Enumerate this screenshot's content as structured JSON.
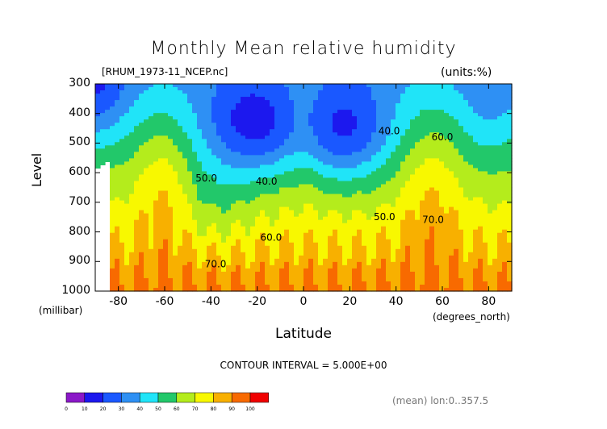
{
  "header": {
    "title": "Monthly Mean relative humidity",
    "source_file": "[RHUM_1973-11_NCEP.nc]",
    "units": "(units:%)",
    "contour_interval": "CONTOUR INTERVAL = 5.000E+00",
    "mean_note": "(mean) lon:0..357.5"
  },
  "chart_data": {
    "type": "heatmap",
    "title": "Monthly Mean relative humidity",
    "xlabel": "Latitude",
    "x_unit": "(degrees_north)",
    "ylabel": "Level",
    "y_unit": "(millibar)",
    "xlim": [
      -90,
      90
    ],
    "ylim": [
      1000,
      300
    ],
    "x_ticks": [
      -80,
      -60,
      -40,
      -20,
      0,
      20,
      40,
      60,
      80
    ],
    "x_tick_labels": [
      "-80",
      "-60",
      "-40",
      "-20",
      "0",
      "20",
      "40",
      "60",
      "80"
    ],
    "y_ticks": [
      300,
      400,
      500,
      600,
      700,
      800,
      900,
      1000
    ],
    "y_tick_labels": [
      "300",
      "400",
      "500",
      "600",
      "700",
      "800",
      "900",
      "1000"
    ],
    "contour_interval": 5,
    "contour_labels": [
      {
        "text": "40.0",
        "lat": -16,
        "lev": 640
      },
      {
        "text": "40.0",
        "lat": 37,
        "lev": 470
      },
      {
        "text": "50.0",
        "lat": -42,
        "lev": 630
      },
      {
        "text": "50.0",
        "lat": 35,
        "lev": 760
      },
      {
        "text": "60.0",
        "lat": -14,
        "lev": 830
      },
      {
        "text": "60.0",
        "lat": 60,
        "lev": 490
      },
      {
        "text": "70.0",
        "lat": -38,
        "lev": 920
      },
      {
        "text": "70.0",
        "lat": 56,
        "lev": 770
      }
    ],
    "colorbar": {
      "levels": [
        0,
        10,
        20,
        30,
        40,
        50,
        60,
        70,
        80,
        90,
        100
      ],
      "labels": [
        "0",
        "10",
        "20",
        "30",
        "40",
        "50",
        "60",
        "70",
        "80",
        "90",
        "100"
      ],
      "colors": [
        "#8b18c8",
        "#1c18ee",
        "#1a58ff",
        "#2e90f4",
        "#20e4f8",
        "#22c86a",
        "#b4ec1c",
        "#f8f800",
        "#f8b000",
        "#f86a00",
        "#f00000"
      ]
    },
    "grid": false
  }
}
